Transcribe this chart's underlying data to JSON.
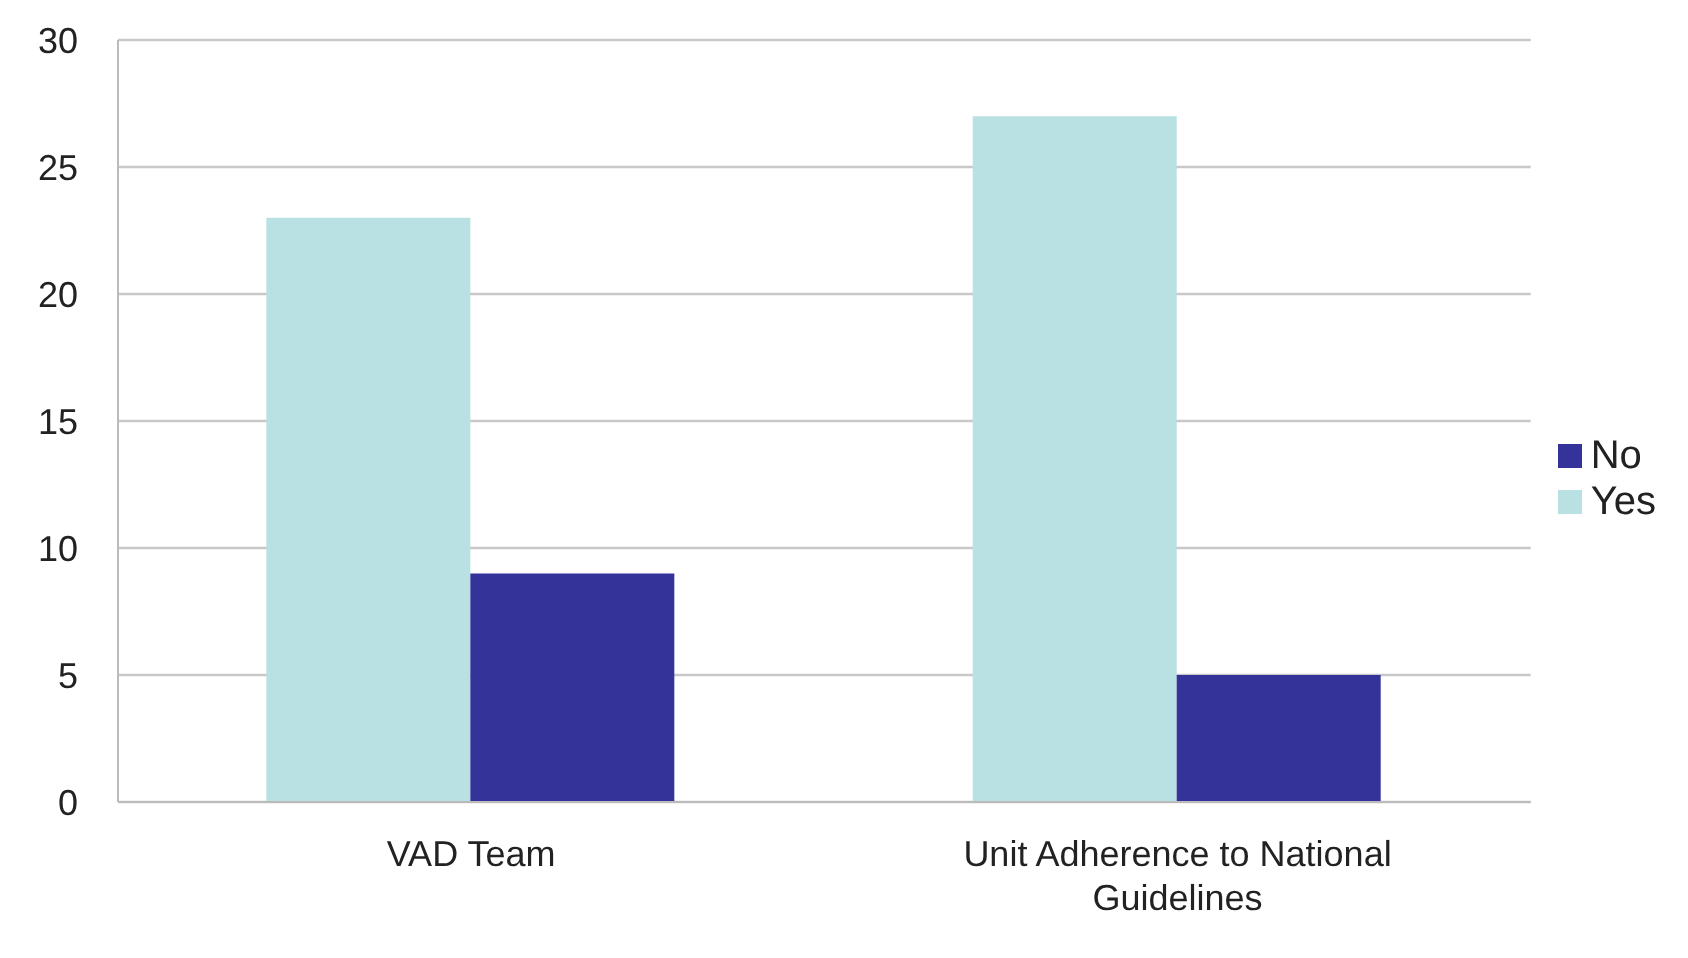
{
  "chart_data": {
    "type": "bar",
    "categories": [
      "VAD Team",
      "Unit Adherence to National Guidelines"
    ],
    "series": [
      {
        "name": "Yes",
        "color": "#b9e0e2",
        "values": [
          23,
          27
        ]
      },
      {
        "name": "No",
        "color": "#333399",
        "values": [
          9,
          5
        ]
      }
    ],
    "ylim": [
      0,
      30
    ],
    "yticks": [
      0,
      5,
      10,
      15,
      20,
      25,
      30
    ],
    "grid": "y",
    "legend": "right"
  }
}
